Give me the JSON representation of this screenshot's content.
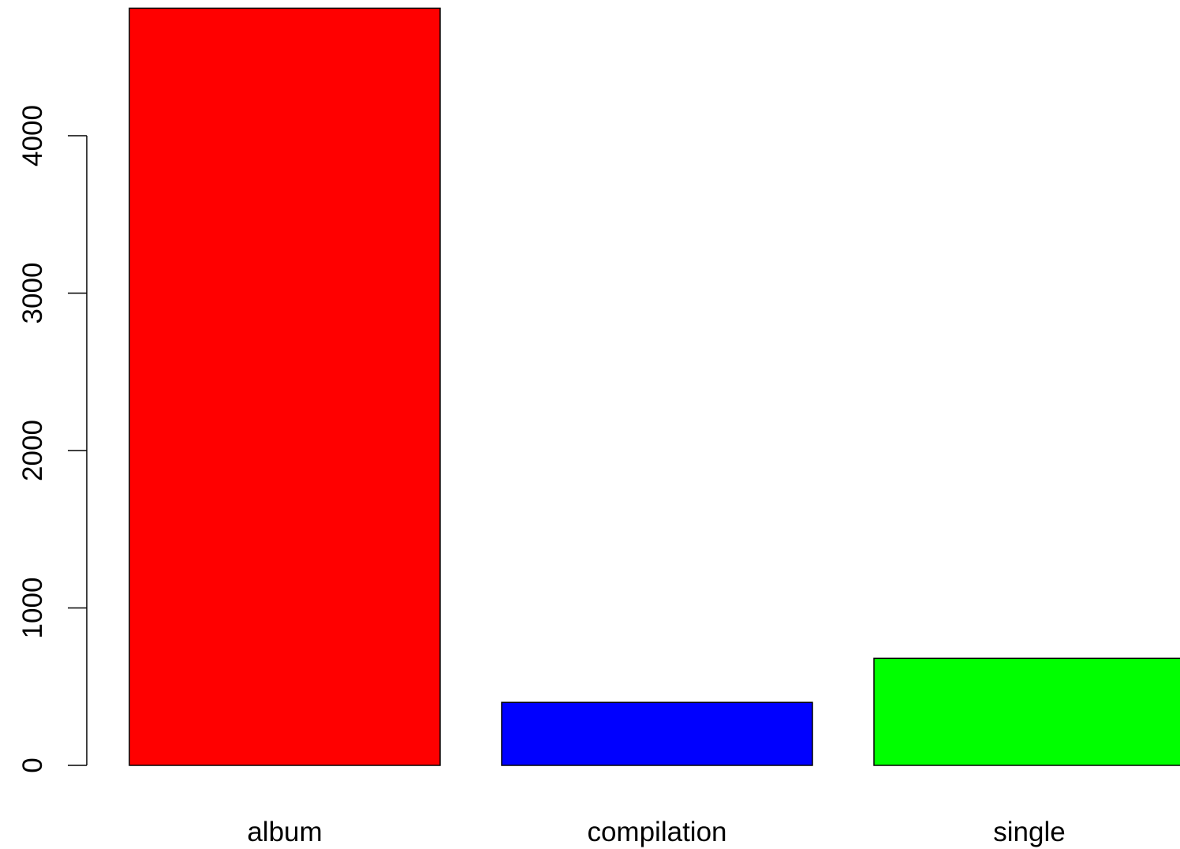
{
  "chart_data": {
    "type": "bar",
    "categories": [
      "album",
      "compilation",
      "single"
    ],
    "values": [
      4810,
      400,
      680
    ],
    "colors": [
      "#ff0000",
      "#0000ff",
      "#00ff00"
    ],
    "bar_border_color": "#000000",
    "yticks": [
      0,
      1000,
      2000,
      3000,
      4000
    ],
    "ylim": [
      0,
      4810
    ],
    "grid": false,
    "legend": "none",
    "title": "",
    "xlabel": "",
    "ylabel": ""
  }
}
